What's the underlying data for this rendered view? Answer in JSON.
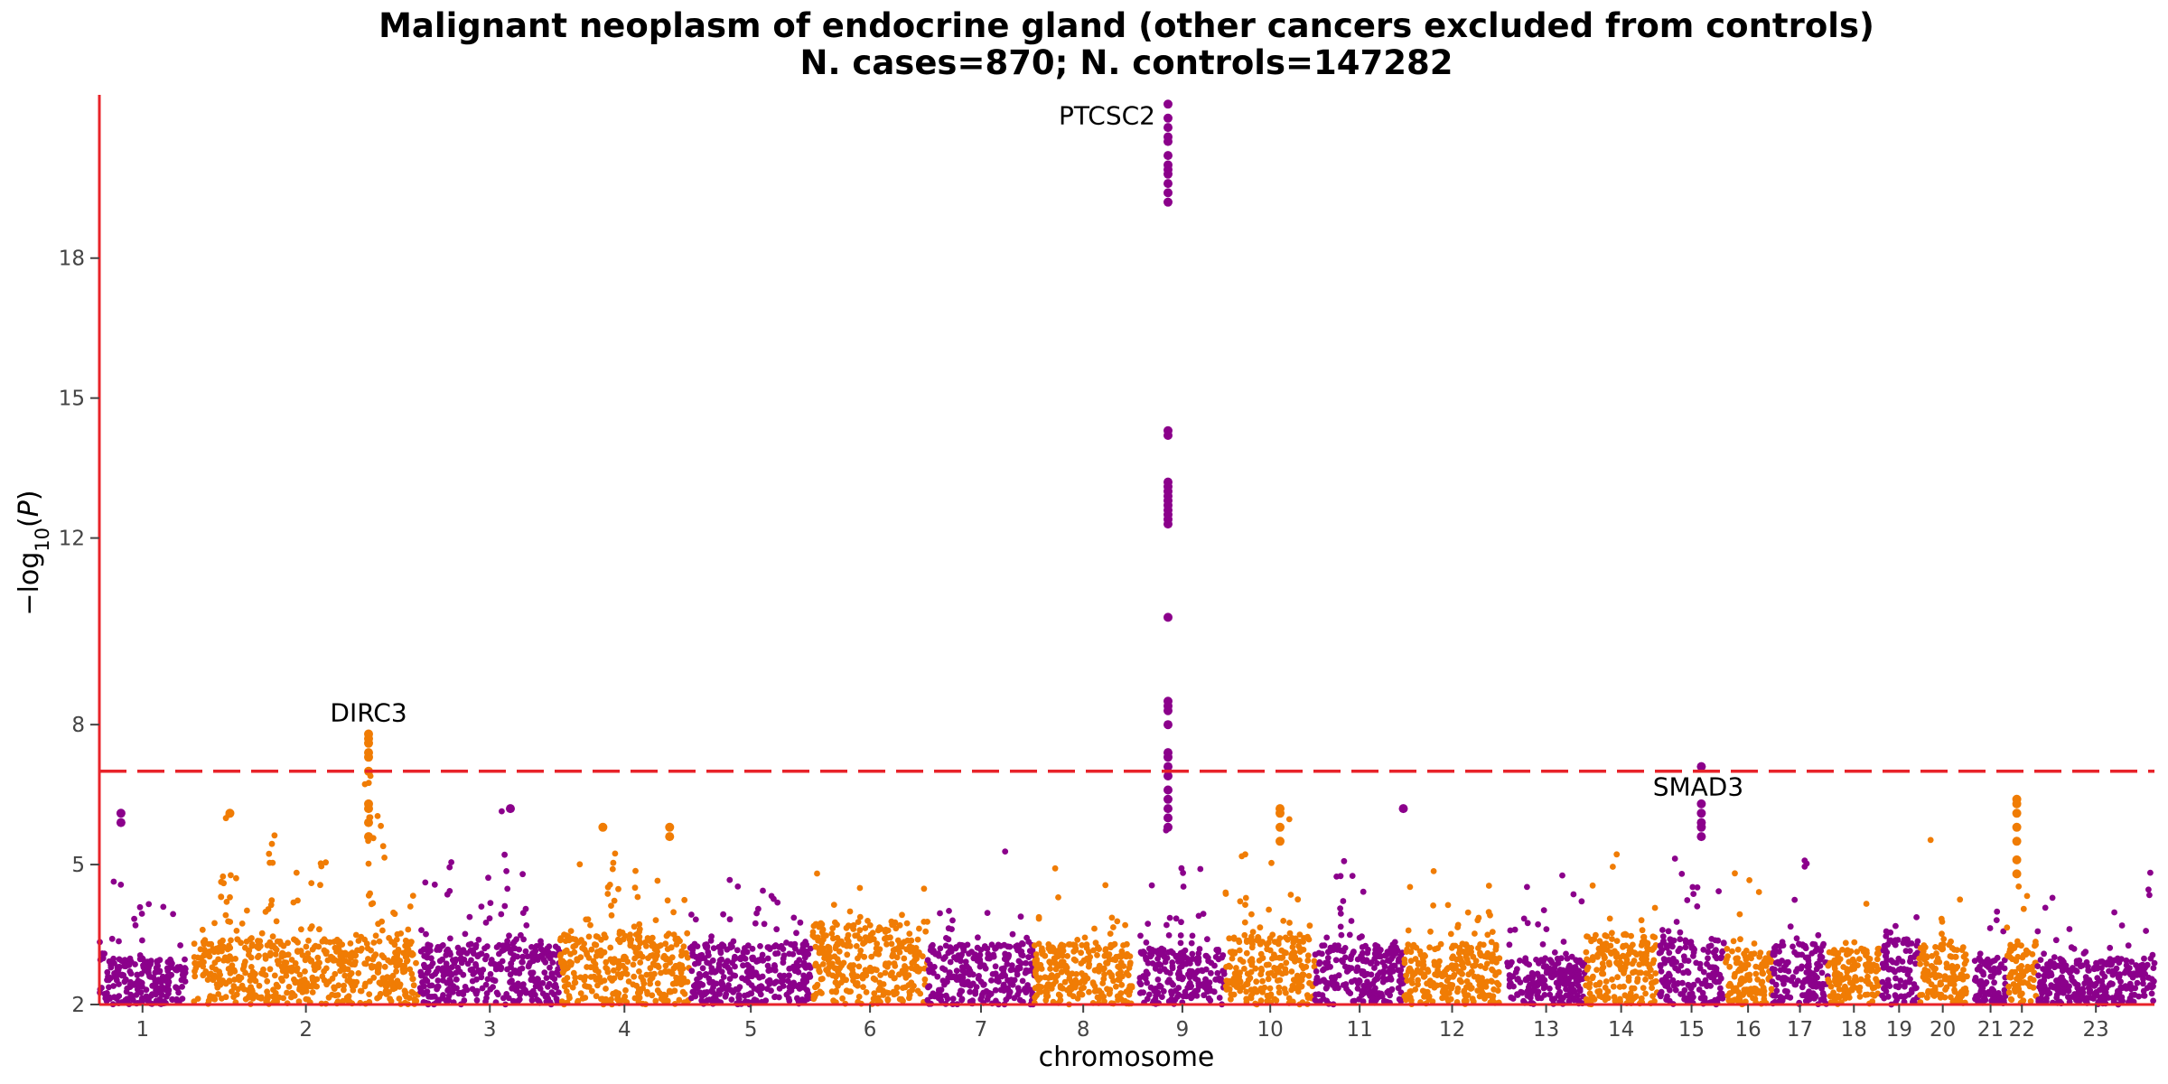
{
  "chart_data": {
    "type": "scatter",
    "subtype": "manhattan",
    "title": "Malignant neoplasm of endocrine gland (other cancers excluded from controls)",
    "subtitle": "N. cases=870; N. controls=147282",
    "xlabel": "chromosome",
    "ylabel": "-log10(P)",
    "ylim": [
      2,
      21.5
    ],
    "yticks": [
      2,
      5,
      8,
      12,
      15,
      18
    ],
    "threshold": 7.0,
    "threshold_color": "#e8232a",
    "axis_color": "#e8232a",
    "colors": {
      "odd": "#8b008b",
      "even": "#f07c04"
    },
    "grid": false,
    "chromosomes": [
      {
        "label": "1",
        "x0": 0,
        "x1": 84,
        "baseline": 3.0,
        "peaks": [
          [
            0.15,
            5.1
          ],
          [
            0.25,
            6.1
          ],
          [
            0.5,
            4.5
          ]
        ]
      },
      {
        "label": "2",
        "x0": 92,
        "x1": 310,
        "baseline": 3.4,
        "peaks": [
          [
            0.15,
            6.2
          ],
          [
            0.35,
            5.8
          ],
          [
            0.55,
            5.4
          ],
          [
            0.78,
            7.8
          ],
          [
            0.82,
            6.3
          ]
        ]
      },
      {
        "label": "3",
        "x0": 312,
        "x1": 448,
        "baseline": 3.3,
        "peaks": [
          [
            0.2,
            5.3
          ],
          [
            0.5,
            4.9
          ],
          [
            0.6,
            6.2
          ],
          [
            0.75,
            5.1
          ]
        ]
      },
      {
        "label": "4",
        "x0": 448,
        "x1": 574,
        "baseline": 3.5,
        "peaks": [
          [
            0.2,
            5.0
          ],
          [
            0.4,
            5.8
          ],
          [
            0.6,
            4.6
          ],
          [
            0.75,
            5.8
          ]
        ]
      },
      {
        "label": "5",
        "x0": 574,
        "x1": 694,
        "baseline": 3.3,
        "peaks": [
          [
            0.3,
            4.8
          ],
          [
            0.7,
            4.7
          ]
        ]
      },
      {
        "label": "6",
        "x0": 694,
        "x1": 806,
        "baseline": 3.8,
        "peaks": [
          [
            0.3,
            5.0
          ],
          [
            0.5,
            5.0
          ],
          [
            0.7,
            4.9
          ]
        ]
      },
      {
        "label": "7",
        "x0": 806,
        "x1": 910,
        "baseline": 3.3,
        "peaks": [
          [
            0.2,
            4.5
          ],
          [
            0.5,
            4.9
          ]
        ]
      },
      {
        "label": "8",
        "x0": 910,
        "x1": 1005,
        "baseline": 3.3,
        "peaks": [
          [
            0.2,
            5.4
          ],
          [
            0.6,
            4.9
          ]
        ]
      },
      {
        "label": "9",
        "x0": 1012,
        "x1": 1096,
        "baseline": 3.2,
        "peaks": [
          [
            0.33,
            21.3
          ],
          [
            0.5,
            5.0
          ]
        ]
      },
      {
        "label": "10",
        "x0": 1096,
        "x1": 1183,
        "baseline": 3.5,
        "peaks": [
          [
            0.2,
            5.4
          ],
          [
            0.7,
            6.2
          ]
        ]
      },
      {
        "label": "11",
        "x0": 1183,
        "x1": 1270,
        "baseline": 3.3,
        "peaks": [
          [
            0.3,
            5.5
          ],
          [
            0.9,
            6.2
          ]
        ]
      },
      {
        "label": "12",
        "x0": 1270,
        "x1": 1363,
        "baseline": 3.3,
        "peaks": [
          [
            0.3,
            4.9
          ],
          [
            0.9,
            5.0
          ]
        ]
      },
      {
        "label": "13",
        "x0": 1370,
        "x1": 1446,
        "baseline": 3.0,
        "peaks": [
          [
            0.5,
            4.7
          ]
        ]
      },
      {
        "label": "14",
        "x0": 1446,
        "x1": 1516,
        "baseline": 3.5,
        "peaks": [
          [
            0.4,
            5.0
          ],
          [
            0.8,
            5.0
          ]
        ]
      },
      {
        "label": "15",
        "x0": 1518,
        "x1": 1581,
        "baseline": 3.4,
        "peaks": [
          [
            0.3,
            5.7
          ],
          [
            0.6,
            7.1
          ]
        ]
      },
      {
        "label": "16",
        "x0": 1581,
        "x1": 1628,
        "baseline": 3.2,
        "peaks": [
          [
            0.5,
            4.8
          ]
        ]
      },
      {
        "label": "17",
        "x0": 1628,
        "x1": 1682,
        "baseline": 3.3,
        "peaks": [
          [
            0.6,
            5.3
          ]
        ]
      },
      {
        "label": "18",
        "x0": 1682,
        "x1": 1733,
        "baseline": 3.2,
        "peaks": [
          [
            0.5,
            4.6
          ]
        ]
      },
      {
        "label": "19",
        "x0": 1733,
        "x1": 1770,
        "baseline": 3.4,
        "peaks": [
          [
            0.5,
            5.3
          ]
        ]
      },
      {
        "label": "20",
        "x0": 1770,
        "x1": 1818,
        "baseline": 3.3,
        "peaks": [
          [
            0.5,
            4.6
          ]
        ]
      },
      {
        "label": "21",
        "x0": 1825,
        "x1": 1856,
        "baseline": 3.0,
        "peaks": [
          [
            0.5,
            4.0
          ]
        ]
      },
      {
        "label": "22",
        "x0": 1856,
        "x1": 1886,
        "baseline": 3.3,
        "peaks": [
          [
            0.4,
            6.4
          ]
        ]
      },
      {
        "label": "23",
        "x0": 1886,
        "x1": 2000,
        "baseline": 3.0,
        "peaks": [
          [
            0.15,
            5.0
          ],
          [
            0.95,
            5.1
          ]
        ]
      }
    ],
    "annotations": [
      {
        "label": "PTCSC2",
        "x": 1040,
        "y": 21.3,
        "anchor": "end"
      },
      {
        "label": "DIRC3",
        "x": 262,
        "y": 7.8,
        "anchor": "middle"
      },
      {
        "label": "SMAD3",
        "x": 1556,
        "y": 7.1,
        "anchor": "middle",
        "below": true
      }
    ],
    "hits": [
      {
        "x": 1040,
        "values": [
          21.3,
          21.0,
          20.8,
          20.6,
          20.5,
          20.2,
          20.0,
          19.9,
          19.8,
          19.6,
          19.4,
          19.2,
          14.3,
          14.2,
          13.2,
          13.1,
          13.0,
          12.9,
          12.8,
          12.7,
          12.6,
          12.5,
          12.4,
          12.3,
          10.3,
          8.5,
          8.4,
          8.3,
          8.0,
          7.4,
          7.3,
          7.1,
          6.9,
          6.6,
          6.4,
          6.2,
          6.0,
          5.8
        ],
        "color": "odd"
      },
      {
        "x": 262,
        "values": [
          7.8,
          7.7,
          7.6,
          7.4,
          7.3,
          7.0,
          6.3,
          6.2,
          5.9,
          5.6
        ],
        "color": "even"
      },
      {
        "x": 1559,
        "values": [
          7.1,
          6.3,
          6.1,
          5.9,
          5.8,
          5.6
        ],
        "color": "odd"
      },
      {
        "x": 1866,
        "values": [
          6.4,
          6.3,
          6.1,
          5.8,
          5.5,
          5.1,
          4.8
        ],
        "color": "even"
      },
      {
        "x": 1149,
        "values": [
          6.2,
          6.1,
          5.8,
          5.5
        ],
        "color": "even"
      },
      {
        "x": 400,
        "values": [
          6.2
        ],
        "color": "odd"
      },
      {
        "x": 21,
        "values": [
          6.1,
          5.9
        ],
        "color": "odd"
      },
      {
        "x": 127,
        "values": [
          6.1
        ],
        "color": "even"
      },
      {
        "x": 1269,
        "values": [
          6.2
        ],
        "color": "odd"
      },
      {
        "x": 490,
        "values": [
          5.8
        ],
        "color": "even"
      },
      {
        "x": 555,
        "values": [
          5.8,
          5.6
        ],
        "color": "even"
      }
    ]
  }
}
